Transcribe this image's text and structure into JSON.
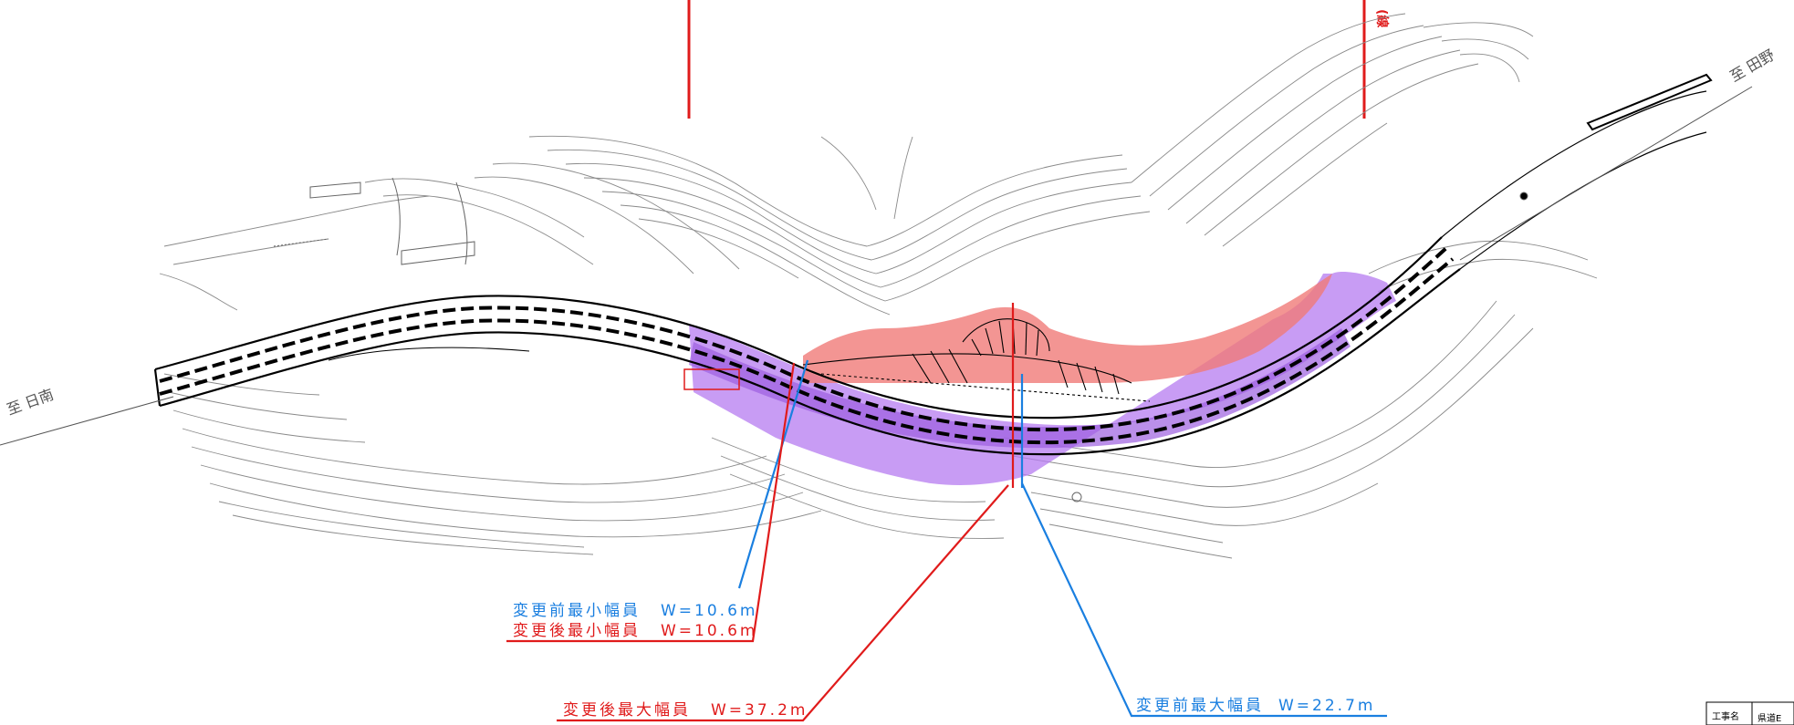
{
  "directions": {
    "left": "至 日南",
    "right": "至 田野",
    "top_right_partial": "(線"
  },
  "annotations": {
    "before_min": {
      "label": "変更前最小幅員",
      "value": "W=10.6m",
      "color": "#1a7fe0"
    },
    "after_min": {
      "label": "変更後最小幅員",
      "value": "W=10.6m",
      "color": "#e01b1b"
    },
    "after_max": {
      "label": "変更後最大幅員",
      "value": "W=37.2m",
      "color": "#e01b1b"
    },
    "before_max": {
      "label": "変更前最大幅員",
      "value": "W=22.7m",
      "color": "#1a7fe0"
    }
  },
  "title_block": {
    "label": "工事名",
    "value": "県道E"
  },
  "colors": {
    "contour": "#8a8a8a",
    "road": "#000000",
    "change_area_before": "#b57bf0",
    "change_area_after": "#f07b78",
    "leader_red": "#e01b1b",
    "leader_blue": "#1a7fe0"
  }
}
